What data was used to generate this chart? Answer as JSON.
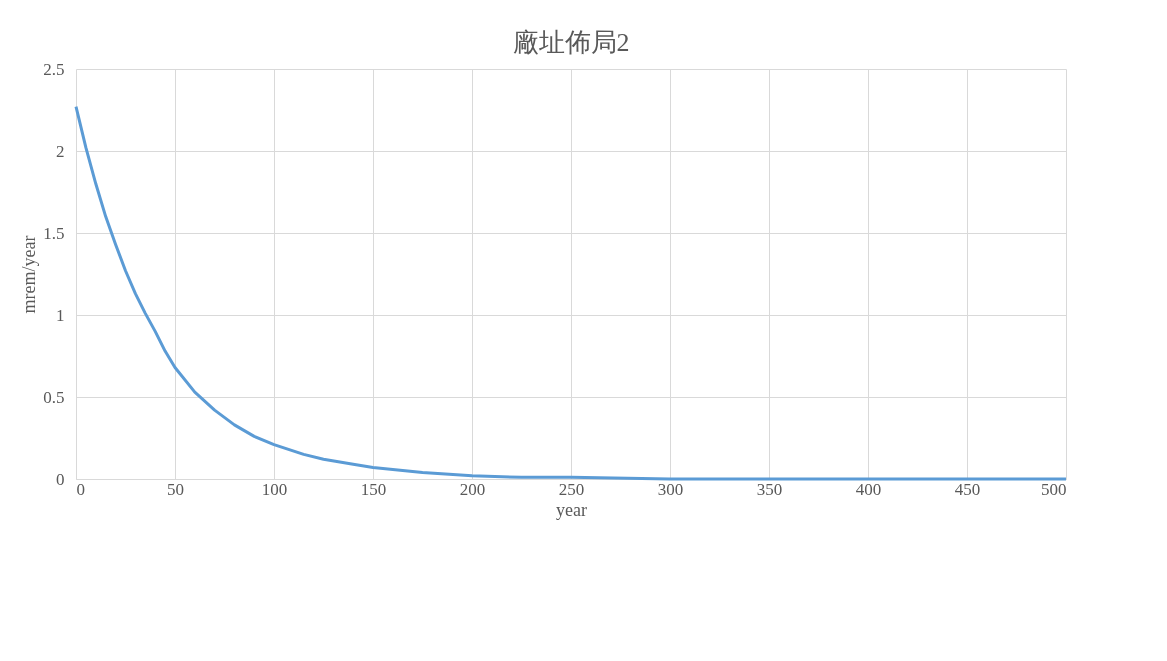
{
  "chart_data": {
    "type": "line",
    "title": "廠址佈局2",
    "xlabel": "year",
    "ylabel": "mrem/year",
    "x": [
      0,
      5,
      10,
      15,
      20,
      25,
      30,
      35,
      40,
      45,
      50,
      60,
      70,
      80,
      90,
      100,
      115,
      125,
      140,
      150,
      175,
      200,
      225,
      250,
      300,
      350,
      400,
      450,
      500
    ],
    "series": [
      {
        "color": "#5b9bd5",
        "values": [
          2.27,
          2.02,
          1.8,
          1.6,
          1.43,
          1.27,
          1.13,
          1.01,
          0.9,
          0.78,
          0.68,
          0.53,
          0.42,
          0.33,
          0.26,
          0.21,
          0.15,
          0.12,
          0.09,
          0.07,
          0.04,
          0.02,
          0.01,
          0.01,
          0.0,
          0.0,
          0.0,
          0.0,
          0.0
        ]
      }
    ],
    "xlim": [
      0,
      500
    ],
    "xticks": [
      0,
      50,
      100,
      150,
      200,
      250,
      300,
      350,
      400,
      450,
      500
    ],
    "ylim": [
      0,
      2.5
    ],
    "yticks": [
      0,
      0.5,
      1,
      1.5,
      2,
      2.5
    ],
    "grid": true,
    "legend": false,
    "marker": "none",
    "line_style": "solid"
  }
}
